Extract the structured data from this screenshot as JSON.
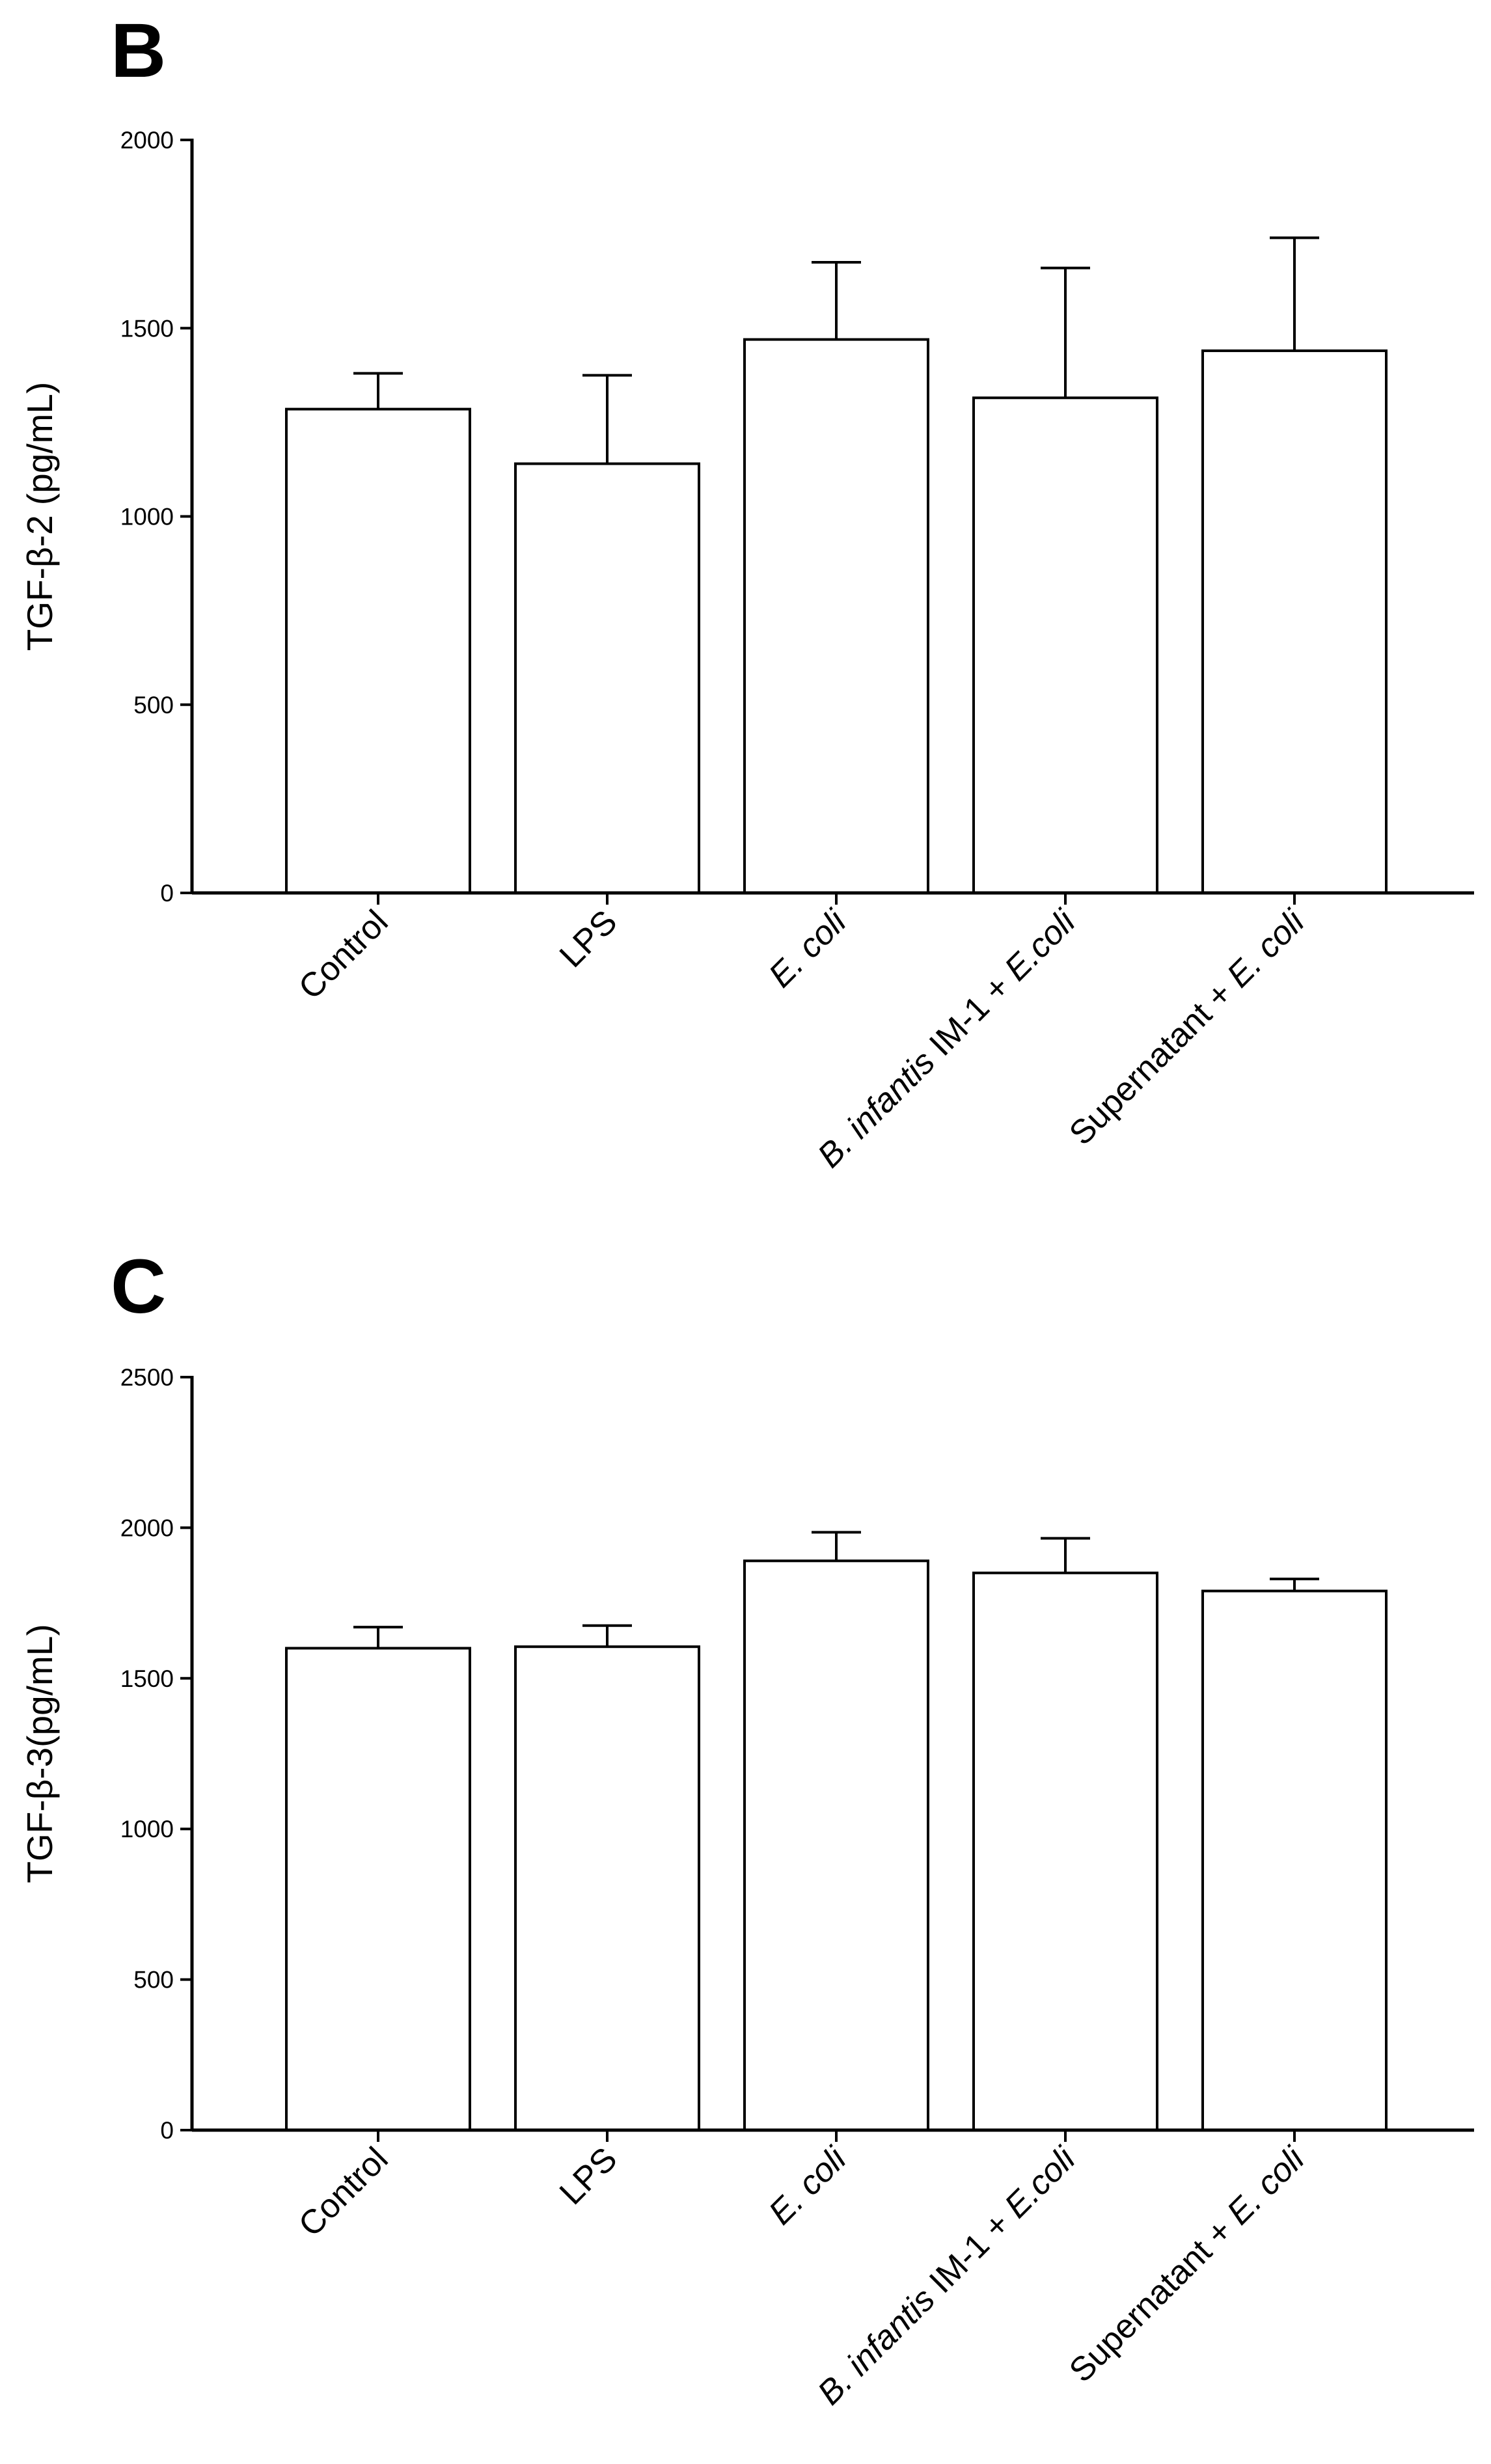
{
  "chart_data": [
    {
      "panel": "B",
      "type": "bar",
      "title": "",
      "ylabel": "TGF-β-2 (pg/mL)",
      "xlabel": "",
      "ylim": [
        0,
        2000
      ],
      "yticks": [
        0,
        500,
        1000,
        1500,
        2000
      ],
      "categories": [
        [
          {
            "text": "Control",
            "italic": false
          }
        ],
        [
          {
            "text": "LPS",
            "italic": false
          }
        ],
        [
          {
            "text": "E. coli",
            "italic": true
          }
        ],
        [
          {
            "text": "B. infantis",
            "italic": true
          },
          {
            "text": " IM-1 + ",
            "italic": false
          },
          {
            "text": "E.coli",
            "italic": true
          }
        ],
        [
          {
            "text": "Supernatant + ",
            "italic": false
          },
          {
            "text": "E. coli",
            "italic": true
          }
        ]
      ],
      "values": [
        1285,
        1140,
        1470,
        1315,
        1440
      ],
      "errors": [
        95,
        235,
        205,
        345,
        300
      ]
    },
    {
      "panel": "C",
      "type": "bar",
      "title": "",
      "ylabel": "TGF-β-3(pg/mL)",
      "xlabel": "",
      "ylim": [
        0,
        2500
      ],
      "yticks": [
        0,
        500,
        1000,
        1500,
        2000,
        2500
      ],
      "categories": [
        [
          {
            "text": "Control",
            "italic": false
          }
        ],
        [
          {
            "text": "LPS",
            "italic": false
          }
        ],
        [
          {
            "text": "E. coli",
            "italic": true
          }
        ],
        [
          {
            "text": "B. infantis",
            "italic": true
          },
          {
            "text": " IM-1 + ",
            "italic": false
          },
          {
            "text": "E.coli",
            "italic": true
          }
        ],
        [
          {
            "text": "Supernatant + ",
            "italic": false
          },
          {
            "text": "E. coli",
            "italic": true
          }
        ]
      ],
      "values": [
        1600,
        1605,
        1890,
        1850,
        1790
      ],
      "errors": [
        70,
        70,
        95,
        115,
        40
      ]
    }
  ]
}
